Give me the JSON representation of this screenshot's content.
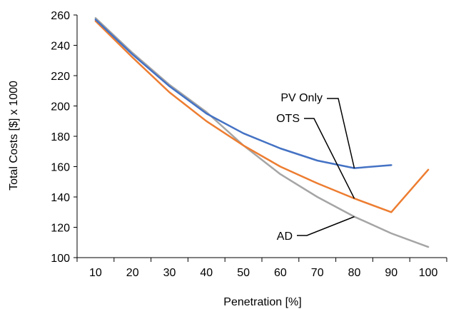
{
  "chart_data": {
    "type": "line",
    "xlabel": "Penetration [%]",
    "ylabel": "Total Costs [$] x 1000",
    "xlim": [
      5,
      105
    ],
    "ylim": [
      100,
      260
    ],
    "x_ticks": [
      10,
      20,
      30,
      40,
      50,
      60,
      70,
      80,
      90,
      100
    ],
    "y_ticks": [
      100,
      120,
      140,
      160,
      180,
      200,
      220,
      240,
      260
    ],
    "grid": false,
    "legend": "none",
    "series": [
      {
        "name": "PV Only",
        "color": "#4472C4",
        "x": [
          10,
          20,
          30,
          40,
          50,
          60,
          70,
          80,
          90
        ],
        "values": [
          257,
          234,
          213,
          195,
          182,
          172,
          164,
          159,
          161
        ]
      },
      {
        "name": "OTS",
        "color": "#ED7D31",
        "x": [
          10,
          20,
          30,
          40,
          50,
          60,
          70,
          80,
          90,
          100
        ],
        "values": [
          256,
          232,
          209,
          190,
          174,
          160,
          149,
          139,
          130,
          158
        ]
      },
      {
        "name": "AD",
        "color": "#A5A5A5",
        "x": [
          10,
          20,
          30,
          40,
          50,
          60,
          70,
          80,
          90,
          100
        ],
        "values": [
          258,
          235,
          214,
          196,
          174,
          155,
          140,
          127,
          116,
          107
        ]
      }
    ]
  }
}
